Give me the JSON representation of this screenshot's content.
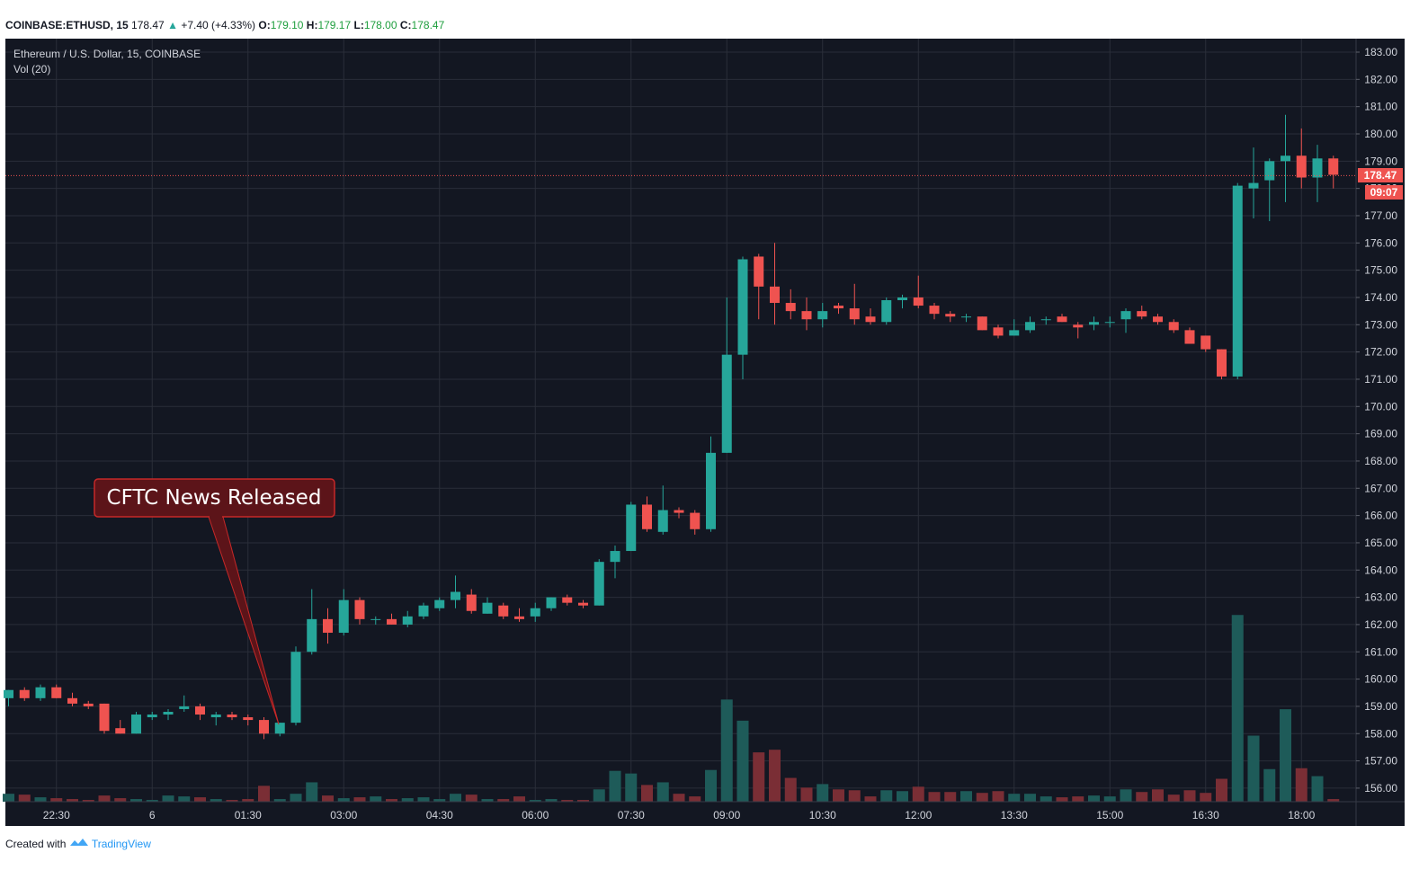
{
  "header": {
    "symbol": "COINBASE:ETHUSD, 15",
    "last": "178.47",
    "change": "+7.40 (+4.33%)",
    "o_label": "O:",
    "o_value": "179.10",
    "h_label": "H:",
    "h_value": "179.17",
    "l_label": "L:",
    "l_value": "178.00",
    "c_label": "C:",
    "c_value": "178.47"
  },
  "legend": {
    "series_title": "Ethereum / U.S. Dollar, 15, COINBASE",
    "volume_title": "Vol (20)"
  },
  "annotation": {
    "text": "CFTC News Released"
  },
  "price_badge": {
    "price": "178.47",
    "countdown": "09:07"
  },
  "footer": {
    "created_with": "Created with",
    "brand": "TradingView"
  },
  "colors": {
    "background": "#131722",
    "grid": "#2a2e39",
    "up": "#26a69a",
    "down": "#ef5350",
    "up_volume": "#1e5b59",
    "down_volume": "#7a2e35",
    "annotation_bg": "#5c1419",
    "annotation_border": "#c62828"
  },
  "chart_data": {
    "type": "candlestick",
    "title": "Ethereum / U.S. Dollar, 15, COINBASE",
    "interval_minutes": 15,
    "ylim": [
      155.5,
      183.5
    ],
    "y_ticks": [
      "183.00",
      "182.00",
      "181.00",
      "180.00",
      "179.00",
      "178.00",
      "177.00",
      "176.00",
      "175.00",
      "174.00",
      "173.00",
      "172.00",
      "171.00",
      "170.00",
      "169.00",
      "168.00",
      "167.00",
      "166.00",
      "165.00",
      "164.00",
      "163.00",
      "162.00",
      "161.00",
      "160.00",
      "159.00",
      "158.00",
      "157.00",
      "156.00"
    ],
    "x_ticks": [
      {
        "label": "22:30",
        "index": 3
      },
      {
        "label": "6",
        "index": 9
      },
      {
        "label": "01:30",
        "index": 15
      },
      {
        "label": "03:00",
        "index": 21
      },
      {
        "label": "04:30",
        "index": 27
      },
      {
        "label": "06:00",
        "index": 33
      },
      {
        "label": "07:30",
        "index": 39
      },
      {
        "label": "09:00",
        "index": 45
      },
      {
        "label": "10:30",
        "index": 51
      },
      {
        "label": "12:00",
        "index": 57
      },
      {
        "label": "13:30",
        "index": 63
      },
      {
        "label": "15:00",
        "index": 69
      },
      {
        "label": "16:30",
        "index": 75
      },
      {
        "label": "18:00",
        "index": 81
      }
    ],
    "grid": true,
    "candles": [
      {
        "o": 159.3,
        "h": 159.6,
        "l": 159.0,
        "c": 159.6,
        "v": 9
      },
      {
        "o": 159.6,
        "h": 159.7,
        "l": 159.2,
        "c": 159.3,
        "v": 8
      },
      {
        "o": 159.3,
        "h": 159.8,
        "l": 159.2,
        "c": 159.7,
        "v": 5
      },
      {
        "o": 159.7,
        "h": 159.8,
        "l": 159.3,
        "c": 159.3,
        "v": 4
      },
      {
        "o": 159.3,
        "h": 159.5,
        "l": 159.0,
        "c": 159.1,
        "v": 3
      },
      {
        "o": 159.1,
        "h": 159.2,
        "l": 158.9,
        "c": 159.0,
        "v": 2
      },
      {
        "o": 159.1,
        "h": 159.1,
        "l": 158.0,
        "c": 158.1,
        "v": 7
      },
      {
        "o": 158.2,
        "h": 158.5,
        "l": 158.0,
        "c": 158.0,
        "v": 4
      },
      {
        "o": 158.0,
        "h": 158.8,
        "l": 158.0,
        "c": 158.7,
        "v": 3
      },
      {
        "o": 158.6,
        "h": 158.8,
        "l": 158.5,
        "c": 158.7,
        "v": 2
      },
      {
        "o": 158.7,
        "h": 158.9,
        "l": 158.5,
        "c": 158.8,
        "v": 7
      },
      {
        "o": 158.9,
        "h": 159.4,
        "l": 158.8,
        "c": 159.0,
        "v": 6
      },
      {
        "o": 159.0,
        "h": 159.1,
        "l": 158.5,
        "c": 158.7,
        "v": 5
      },
      {
        "o": 158.6,
        "h": 158.8,
        "l": 158.3,
        "c": 158.7,
        "v": 3
      },
      {
        "o": 158.7,
        "h": 158.8,
        "l": 158.5,
        "c": 158.6,
        "v": 2
      },
      {
        "o": 158.6,
        "h": 158.7,
        "l": 158.3,
        "c": 158.5,
        "v": 3
      },
      {
        "o": 158.5,
        "h": 158.6,
        "l": 157.8,
        "c": 158.0,
        "v": 18
      },
      {
        "o": 158.0,
        "h": 158.4,
        "l": 157.9,
        "c": 158.4,
        "v": 3
      },
      {
        "o": 158.4,
        "h": 161.2,
        "l": 158.3,
        "c": 161.0,
        "v": 9
      },
      {
        "o": 161.0,
        "h": 163.3,
        "l": 160.9,
        "c": 162.2,
        "v": 22
      },
      {
        "o": 162.2,
        "h": 162.6,
        "l": 161.3,
        "c": 161.7,
        "v": 7
      },
      {
        "o": 161.7,
        "h": 163.3,
        "l": 161.6,
        "c": 162.9,
        "v": 4
      },
      {
        "o": 162.9,
        "h": 163.0,
        "l": 162.0,
        "c": 162.2,
        "v": 5
      },
      {
        "o": 162.2,
        "h": 162.3,
        "l": 162.0,
        "c": 162.2,
        "v": 6
      },
      {
        "o": 162.2,
        "h": 162.4,
        "l": 162.0,
        "c": 162.0,
        "v": 3
      },
      {
        "o": 162.0,
        "h": 162.5,
        "l": 161.9,
        "c": 162.3,
        "v": 4
      },
      {
        "o": 162.3,
        "h": 162.8,
        "l": 162.2,
        "c": 162.7,
        "v": 5
      },
      {
        "o": 162.6,
        "h": 163.0,
        "l": 162.5,
        "c": 162.9,
        "v": 3
      },
      {
        "o": 162.9,
        "h": 163.8,
        "l": 162.6,
        "c": 163.2,
        "v": 9
      },
      {
        "o": 163.1,
        "h": 163.3,
        "l": 162.4,
        "c": 162.5,
        "v": 8
      },
      {
        "o": 162.4,
        "h": 163.0,
        "l": 162.4,
        "c": 162.8,
        "v": 3
      },
      {
        "o": 162.7,
        "h": 162.8,
        "l": 162.2,
        "c": 162.3,
        "v": 3
      },
      {
        "o": 162.3,
        "h": 162.6,
        "l": 162.1,
        "c": 162.2,
        "v": 6
      },
      {
        "o": 162.3,
        "h": 162.8,
        "l": 162.1,
        "c": 162.6,
        "v": 2
      },
      {
        "o": 162.6,
        "h": 163.0,
        "l": 162.5,
        "c": 163.0,
        "v": 3
      },
      {
        "o": 163.0,
        "h": 163.1,
        "l": 162.7,
        "c": 162.8,
        "v": 2
      },
      {
        "o": 162.8,
        "h": 162.9,
        "l": 162.6,
        "c": 162.7,
        "v": 2
      },
      {
        "o": 162.7,
        "h": 164.4,
        "l": 162.7,
        "c": 164.3,
        "v": 14
      },
      {
        "o": 164.3,
        "h": 164.9,
        "l": 163.7,
        "c": 164.7,
        "v": 35
      },
      {
        "o": 164.7,
        "h": 166.5,
        "l": 164.7,
        "c": 166.4,
        "v": 32
      },
      {
        "o": 166.4,
        "h": 166.7,
        "l": 165.4,
        "c": 165.5,
        "v": 19
      },
      {
        "o": 165.4,
        "h": 167.1,
        "l": 165.3,
        "c": 166.2,
        "v": 22
      },
      {
        "o": 166.2,
        "h": 166.3,
        "l": 165.9,
        "c": 166.1,
        "v": 9
      },
      {
        "o": 166.1,
        "h": 166.2,
        "l": 165.3,
        "c": 165.5,
        "v": 6
      },
      {
        "o": 165.5,
        "h": 168.9,
        "l": 165.4,
        "c": 168.3,
        "v": 36
      },
      {
        "o": 168.3,
        "h": 174.0,
        "l": 168.3,
        "c": 171.9,
        "v": 116
      },
      {
        "o": 171.9,
        "h": 175.5,
        "l": 171.0,
        "c": 175.4,
        "v": 92
      },
      {
        "o": 175.5,
        "h": 175.6,
        "l": 173.2,
        "c": 174.4,
        "v": 56
      },
      {
        "o": 174.4,
        "h": 176.0,
        "l": 173.0,
        "c": 173.8,
        "v": 59
      },
      {
        "o": 173.8,
        "h": 174.3,
        "l": 173.2,
        "c": 173.5,
        "v": 27
      },
      {
        "o": 173.5,
        "h": 174.0,
        "l": 172.8,
        "c": 173.2,
        "v": 16
      },
      {
        "o": 173.2,
        "h": 173.8,
        "l": 172.9,
        "c": 173.5,
        "v": 20
      },
      {
        "o": 173.7,
        "h": 173.8,
        "l": 173.4,
        "c": 173.6,
        "v": 14
      },
      {
        "o": 173.6,
        "h": 174.5,
        "l": 173.0,
        "c": 173.2,
        "v": 13
      },
      {
        "o": 173.3,
        "h": 173.6,
        "l": 173.0,
        "c": 173.1,
        "v": 6
      },
      {
        "o": 173.1,
        "h": 174.0,
        "l": 173.0,
        "c": 173.9,
        "v": 13
      },
      {
        "o": 173.9,
        "h": 174.1,
        "l": 173.6,
        "c": 174.0,
        "v": 12
      },
      {
        "o": 174.0,
        "h": 174.8,
        "l": 173.6,
        "c": 173.7,
        "v": 17
      },
      {
        "o": 173.7,
        "h": 173.8,
        "l": 173.2,
        "c": 173.4,
        "v": 11
      },
      {
        "o": 173.4,
        "h": 173.5,
        "l": 173.1,
        "c": 173.3,
        "v": 11
      },
      {
        "o": 173.3,
        "h": 173.4,
        "l": 173.1,
        "c": 173.3,
        "v": 12
      },
      {
        "o": 173.3,
        "h": 173.3,
        "l": 172.8,
        "c": 172.8,
        "v": 10
      },
      {
        "o": 172.9,
        "h": 173.0,
        "l": 172.5,
        "c": 172.6,
        "v": 12
      },
      {
        "o": 172.6,
        "h": 173.2,
        "l": 172.6,
        "c": 172.8,
        "v": 9
      },
      {
        "o": 172.8,
        "h": 173.3,
        "l": 172.7,
        "c": 173.1,
        "v": 9
      },
      {
        "o": 173.2,
        "h": 173.3,
        "l": 173.0,
        "c": 173.2,
        "v": 6
      },
      {
        "o": 173.3,
        "h": 173.4,
        "l": 173.1,
        "c": 173.1,
        "v": 5
      },
      {
        "o": 173.0,
        "h": 173.1,
        "l": 172.5,
        "c": 172.9,
        "v": 6
      },
      {
        "o": 173.0,
        "h": 173.3,
        "l": 172.8,
        "c": 173.1,
        "v": 7
      },
      {
        "o": 173.1,
        "h": 173.3,
        "l": 172.9,
        "c": 173.1,
        "v": 6
      },
      {
        "o": 173.2,
        "h": 173.6,
        "l": 172.7,
        "c": 173.5,
        "v": 14
      },
      {
        "o": 173.5,
        "h": 173.7,
        "l": 173.2,
        "c": 173.3,
        "v": 11
      },
      {
        "o": 173.3,
        "h": 173.4,
        "l": 173.0,
        "c": 173.1,
        "v": 14
      },
      {
        "o": 173.1,
        "h": 173.2,
        "l": 172.7,
        "c": 172.8,
        "v": 8
      },
      {
        "o": 172.8,
        "h": 172.9,
        "l": 172.3,
        "c": 172.3,
        "v": 13
      },
      {
        "o": 172.6,
        "h": 172.6,
        "l": 172.0,
        "c": 172.1,
        "v": 10
      },
      {
        "o": 172.1,
        "h": 172.1,
        "l": 171.0,
        "c": 171.1,
        "v": 26
      },
      {
        "o": 171.1,
        "h": 178.2,
        "l": 171.0,
        "c": 178.1,
        "v": 212
      },
      {
        "o": 178.0,
        "h": 179.5,
        "l": 176.9,
        "c": 178.2,
        "v": 75
      },
      {
        "o": 178.3,
        "h": 179.1,
        "l": 176.8,
        "c": 179.0,
        "v": 37
      },
      {
        "o": 179.0,
        "h": 180.7,
        "l": 177.5,
        "c": 179.2,
        "v": 105
      },
      {
        "o": 179.2,
        "h": 180.2,
        "l": 178.0,
        "c": 178.4,
        "v": 38
      },
      {
        "o": 178.4,
        "h": 179.6,
        "l": 177.5,
        "c": 179.1,
        "v": 29
      },
      {
        "o": 179.1,
        "h": 179.2,
        "l": 178.0,
        "c": 178.5,
        "v": 3
      }
    ]
  }
}
